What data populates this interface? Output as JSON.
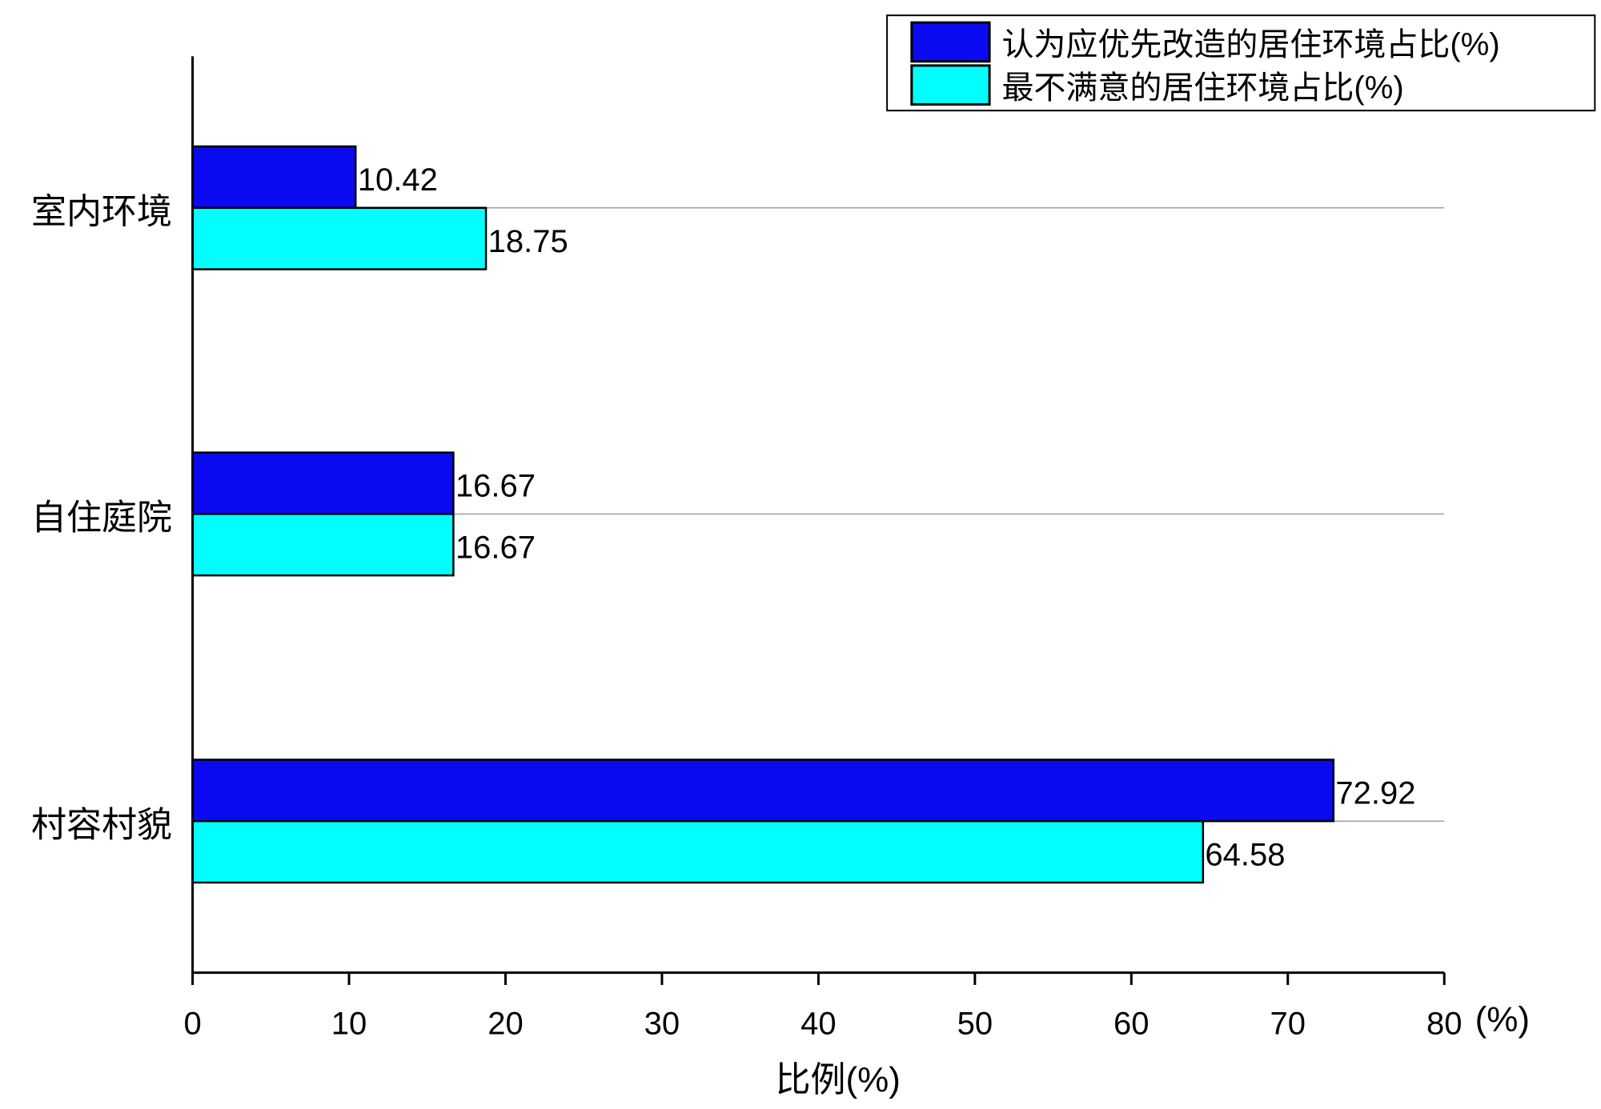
{
  "chart_data": {
    "type": "bar",
    "orientation": "horizontal",
    "categories": [
      "室内环境",
      "自住庭院",
      "村容村貌"
    ],
    "series": [
      {
        "name": "认为应优先改造的居住环境占比(%)",
        "color": "#0a0af0",
        "values": [
          10.42,
          16.67,
          72.92
        ]
      },
      {
        "name": "最不满意的居住环境占比(%)",
        "color": "#00ffff",
        "values": [
          18.75,
          16.67,
          64.58
        ]
      }
    ],
    "data_labels": [
      [
        "10.42",
        "16.67",
        "72.92"
      ],
      [
        "18.75",
        "16.67",
        "64.58"
      ]
    ],
    "xlabel": "比例(%)",
    "x_unit": "(%)",
    "xlim": [
      0,
      80
    ],
    "xticks": [
      "0",
      "10",
      "20",
      "30",
      "40",
      "50",
      "60",
      "70",
      "80"
    ],
    "grid": "horizontal gridlines at category centers",
    "legend_position": "top-right"
  }
}
